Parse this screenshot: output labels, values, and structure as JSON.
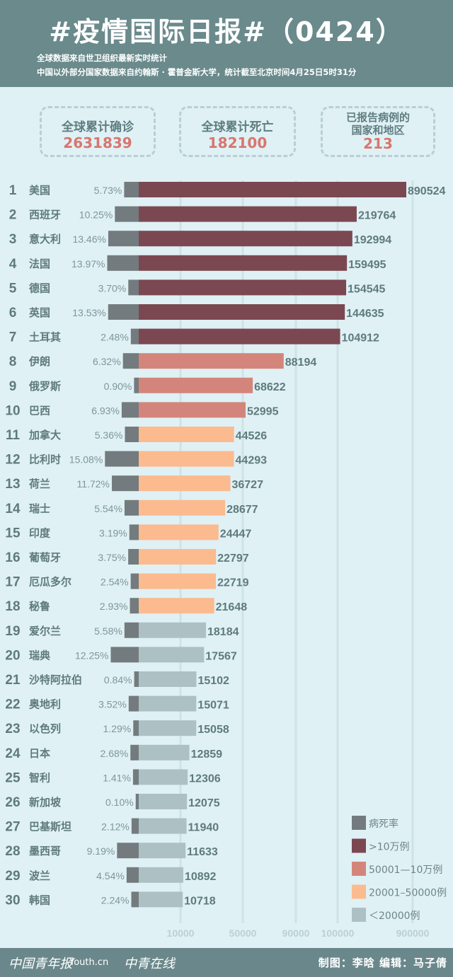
{
  "header": {
    "title": "#疫情国际日报#（0424）",
    "subtitle_1": "全球数据来自世卫组织最新实时统计",
    "subtitle_2": "中国以外部分国家数据来自约翰斯 · 霍普金斯大学，统计截至北京时间4月25日5时31分"
  },
  "stats": [
    {
      "label": "全球累计确诊",
      "value": "2631839"
    },
    {
      "label": "全球累计死亡",
      "value": "182100"
    },
    {
      "label": "已报告病例的国家和地区",
      "label_line1": "已报告病例的",
      "label_line2": "国家和地区",
      "value": "213"
    }
  ],
  "colors": {
    "death_rate": "#737b7e",
    "over_100k": "#7b4852",
    "50001_100k": "#d4857b",
    "20001_50000": "#fcba8f",
    "under_20000": "#adc1c4",
    "header": "#6a8a8c",
    "background": "#dff1f5"
  },
  "chart_data": {
    "type": "bar",
    "orientation": "horizontal",
    "x_ticks": [
      "10000",
      "50000",
      "90000",
      "100000",
      "900000"
    ],
    "x_scale": "non-linear",
    "legend": {
      "position": "bottom-right",
      "items": [
        {
          "label": "病死率",
          "color_key": "death_rate"
        },
        {
          "label": ">10万例",
          "color_key": "over_100k"
        },
        {
          "label": "50001—10万例",
          "color_key": "50001_100k"
        },
        {
          "label": "20001–50000例",
          "color_key": "20001_50000"
        },
        {
          "label": "＜20000例",
          "color_key": "under_20000"
        }
      ]
    },
    "rows": [
      {
        "rank": "1",
        "country": "美国",
        "death_rate": "5.73%",
        "cases": 890524
      },
      {
        "rank": "2",
        "country": "西班牙",
        "death_rate": "10.25%",
        "cases": 219764
      },
      {
        "rank": "3",
        "country": "意大利",
        "death_rate": "13.46%",
        "cases": 192994
      },
      {
        "rank": "4",
        "country": "法国",
        "death_rate": "13.97%",
        "cases": 159495
      },
      {
        "rank": "5",
        "country": "德国",
        "death_rate": "3.70%",
        "cases": 154545
      },
      {
        "rank": "6",
        "country": "英国",
        "death_rate": "13.53%",
        "cases": 144635
      },
      {
        "rank": "7",
        "country": "土耳其",
        "death_rate": "2.48%",
        "cases": 104912
      },
      {
        "rank": "8",
        "country": "伊朗",
        "death_rate": "6.32%",
        "cases": 88194
      },
      {
        "rank": "9",
        "country": "俄罗斯",
        "death_rate": "0.90%",
        "cases": 68622
      },
      {
        "rank": "10",
        "country": "巴西",
        "death_rate": "6.93%",
        "cases": 52995
      },
      {
        "rank": "11",
        "country": "加拿大",
        "death_rate": "5.36%",
        "cases": 44526
      },
      {
        "rank": "12",
        "country": "比利时",
        "death_rate": "15.08%",
        "cases": 44293
      },
      {
        "rank": "13",
        "country": "荷兰",
        "death_rate": "11.72%",
        "cases": 36727
      },
      {
        "rank": "14",
        "country": "瑞士",
        "death_rate": "5.54%",
        "cases": 28677
      },
      {
        "rank": "15",
        "country": "印度",
        "death_rate": "3.19%",
        "cases": 24447
      },
      {
        "rank": "16",
        "country": "葡萄牙",
        "death_rate": "3.75%",
        "cases": 22797
      },
      {
        "rank": "17",
        "country": "厄瓜多尔",
        "death_rate": "2.54%",
        "cases": 22719
      },
      {
        "rank": "18",
        "country": "秘鲁",
        "death_rate": "2.93%",
        "cases": 21648
      },
      {
        "rank": "19",
        "country": "爱尔兰",
        "death_rate": "5.58%",
        "cases": 18184
      },
      {
        "rank": "20",
        "country": "瑞典",
        "death_rate": "12.25%",
        "cases": 17567
      },
      {
        "rank": "21",
        "country": "沙特阿拉伯",
        "death_rate": "0.84%",
        "cases": 15102
      },
      {
        "rank": "22",
        "country": "奥地利",
        "death_rate": "3.52%",
        "cases": 15071
      },
      {
        "rank": "23",
        "country": "以色列",
        "death_rate": "1.29%",
        "cases": 15058
      },
      {
        "rank": "24",
        "country": "日本",
        "death_rate": "2.68%",
        "cases": 12859
      },
      {
        "rank": "25",
        "country": "智利",
        "death_rate": "1.41%",
        "cases": 12306
      },
      {
        "rank": "26",
        "country": "新加坡",
        "death_rate": "0.10%",
        "cases": 12075
      },
      {
        "rank": "27",
        "country": "巴基斯坦",
        "death_rate": "2.12%",
        "cases": 11940
      },
      {
        "rank": "28",
        "country": "墨西哥",
        "death_rate": "9.19%",
        "cases": 11633
      },
      {
        "rank": "29",
        "country": "波兰",
        "death_rate": "4.54%",
        "cases": 10892
      },
      {
        "rank": "30",
        "country": "韩国",
        "death_rate": "2.24%",
        "cases": 10718
      }
    ]
  },
  "footer": {
    "logos": [
      "中国青年报",
      "Youth.cn",
      "中青在线"
    ],
    "credits": "制图：李晗  编辑：马子倩"
  }
}
